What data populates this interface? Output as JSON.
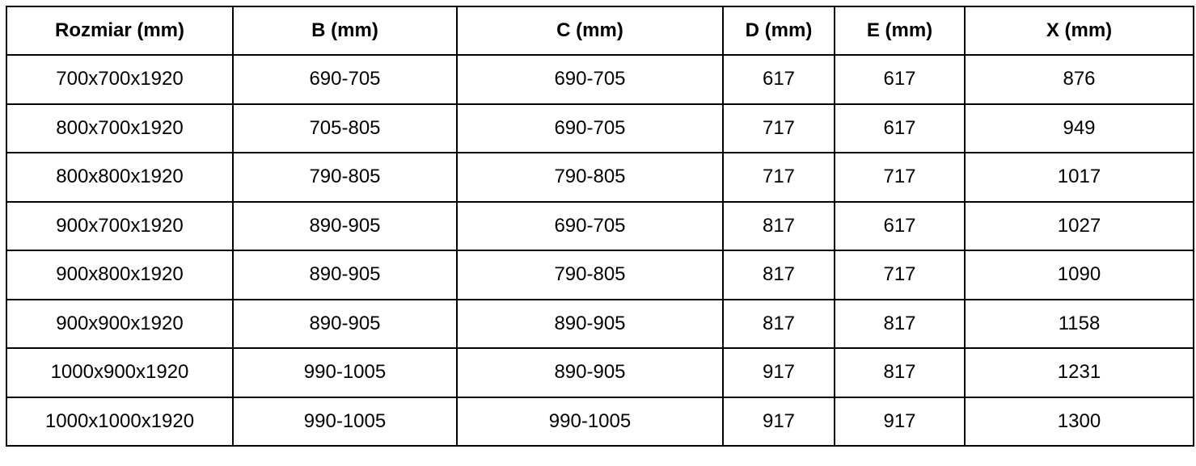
{
  "table": {
    "headers": [
      "Rozmiar (mm)",
      "B (mm)",
      "C (mm)",
      "D (mm)",
      "E (mm)",
      "X (mm)"
    ],
    "rows": [
      [
        "700x700x1920",
        "690-705",
        "690-705",
        "617",
        "617",
        "876"
      ],
      [
        "800x700x1920",
        "705-805",
        "690-705",
        "717",
        "617",
        "949"
      ],
      [
        "800x800x1920",
        "790-805",
        "790-805",
        "717",
        "717",
        "1017"
      ],
      [
        "900x700x1920",
        "890-905",
        "690-705",
        "817",
        "617",
        "1027"
      ],
      [
        "900x800x1920",
        "890-905",
        "790-805",
        "817",
        "717",
        "1090"
      ],
      [
        "900x900x1920",
        "890-905",
        "890-905",
        "817",
        "817",
        "1158"
      ],
      [
        "1000x900x1920",
        "990-1005",
        "890-905",
        "917",
        "817",
        "1231"
      ],
      [
        "1000x1000x1920",
        "990-1005",
        "990-1005",
        "917",
        "917",
        "1300"
      ]
    ]
  }
}
